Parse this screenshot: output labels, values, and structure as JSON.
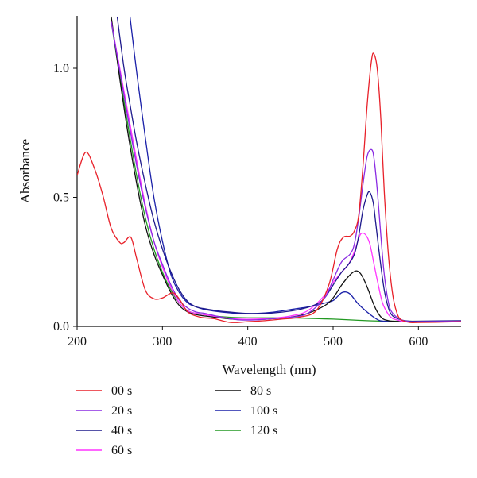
{
  "chart_data": {
    "type": "line",
    "xlabel": "Wavelength (nm)",
    "ylabel": "Absorbance",
    "xlim": [
      200,
      650
    ],
    "ylim": [
      0,
      1.2
    ],
    "x_ticks": [
      200,
      300,
      400,
      500,
      600
    ],
    "x_tick_labels": [
      "200",
      "300",
      "400",
      "500",
      "600"
    ],
    "y_ticks": [
      0,
      0.5,
      1.0
    ],
    "y_tick_labels": [
      "0.0",
      "0.5",
      "1.0"
    ],
    "grid": false,
    "legend_position": "bottom",
    "series": [
      {
        "name": "00 s",
        "color": "#e8212a",
        "x": [
          200,
          210,
          220,
          230,
          240,
          250,
          255,
          263,
          270,
          280,
          290,
          300,
          312,
          320,
          330,
          345,
          360,
          380,
          400,
          420,
          440,
          460,
          480,
          495,
          505,
          512,
          520,
          525,
          530,
          535,
          540,
          545,
          548,
          552,
          556,
          560,
          565,
          570,
          575,
          580,
          590,
          600,
          620,
          650
        ],
        "y": [
          0.585,
          0.675,
          0.615,
          0.51,
          0.38,
          0.325,
          0.325,
          0.345,
          0.26,
          0.14,
          0.107,
          0.11,
          0.13,
          0.105,
          0.055,
          0.035,
          0.03,
          0.015,
          0.018,
          0.022,
          0.028,
          0.035,
          0.06,
          0.16,
          0.3,
          0.345,
          0.35,
          0.37,
          0.43,
          0.62,
          0.86,
          1.03,
          1.055,
          0.99,
          0.8,
          0.52,
          0.27,
          0.12,
          0.05,
          0.025,
          0.015,
          0.015,
          0.016,
          0.018
        ]
      },
      {
        "name": "20 s",
        "color": "#8a2be2",
        "x": [
          240,
          250,
          260,
          270,
          280,
          290,
          300,
          310,
          320,
          330,
          340,
          350,
          370,
          390,
          410,
          430,
          450,
          470,
          490,
          500,
          510,
          520,
          525,
          530,
          535,
          540,
          545,
          548,
          552,
          556,
          560,
          565,
          570,
          580,
          590,
          600,
          650
        ],
        "y": [
          1.18,
          0.99,
          0.8,
          0.62,
          0.46,
          0.33,
          0.24,
          0.16,
          0.1,
          0.07,
          0.055,
          0.05,
          0.035,
          0.025,
          0.025,
          0.03,
          0.035,
          0.05,
          0.11,
          0.18,
          0.25,
          0.28,
          0.32,
          0.42,
          0.55,
          0.66,
          0.685,
          0.65,
          0.52,
          0.35,
          0.2,
          0.09,
          0.05,
          0.025,
          0.018,
          0.018,
          0.02
        ]
      },
      {
        "name": "40 s",
        "color": "#1e1a8c",
        "x": [
          247,
          255,
          262,
          270,
          280,
          290,
          300,
          310,
          320,
          330,
          340,
          350,
          365,
          380,
          400,
          420,
          440,
          460,
          480,
          490,
          500,
          510,
          518,
          525,
          530,
          535,
          540,
          543,
          547,
          550,
          555,
          560,
          565,
          570,
          580,
          590,
          600,
          650
        ],
        "y": [
          1.2,
          1.0,
          0.86,
          0.71,
          0.55,
          0.41,
          0.3,
          0.21,
          0.14,
          0.095,
          0.075,
          0.068,
          0.06,
          0.055,
          0.05,
          0.05,
          0.055,
          0.065,
          0.085,
          0.11,
          0.16,
          0.21,
          0.24,
          0.28,
          0.35,
          0.45,
          0.51,
          0.52,
          0.48,
          0.4,
          0.26,
          0.14,
          0.07,
          0.04,
          0.025,
          0.02,
          0.02,
          0.022
        ]
      },
      {
        "name": "60 s",
        "color": "#ff33ff",
        "x": [
          240,
          250,
          260,
          270,
          280,
          290,
          300,
          310,
          320,
          330,
          340,
          350,
          370,
          390,
          410,
          430,
          450,
          470,
          490,
          500,
          510,
          518,
          525,
          530,
          533,
          538,
          543,
          548,
          553,
          558,
          565,
          570,
          575,
          580,
          590,
          600,
          650
        ],
        "y": [
          1.18,
          1.0,
          0.82,
          0.64,
          0.47,
          0.33,
          0.23,
          0.15,
          0.09,
          0.06,
          0.05,
          0.045,
          0.035,
          0.028,
          0.028,
          0.032,
          0.04,
          0.06,
          0.12,
          0.17,
          0.21,
          0.24,
          0.29,
          0.34,
          0.36,
          0.355,
          0.32,
          0.24,
          0.16,
          0.09,
          0.045,
          0.03,
          0.025,
          0.02,
          0.018,
          0.018,
          0.02
        ]
      },
      {
        "name": "80 s",
        "color": "#111111",
        "x": [
          240,
          250,
          260,
          270,
          280,
          290,
          300,
          310,
          320,
          330,
          340,
          350,
          370,
          390,
          410,
          430,
          450,
          470,
          490,
          500,
          510,
          520,
          527,
          532,
          537,
          542,
          547,
          552,
          558,
          565,
          570,
          580,
          590,
          600,
          650
        ],
        "y": [
          1.2,
          0.96,
          0.74,
          0.55,
          0.39,
          0.28,
          0.2,
          0.13,
          0.08,
          0.055,
          0.045,
          0.04,
          0.032,
          0.026,
          0.026,
          0.03,
          0.035,
          0.05,
          0.08,
          0.11,
          0.16,
          0.2,
          0.215,
          0.205,
          0.175,
          0.135,
          0.09,
          0.055,
          0.03,
          0.022,
          0.02,
          0.018,
          0.018,
          0.018,
          0.02
        ]
      },
      {
        "name": "100 s",
        "color": "#1a20a8",
        "x": [
          262,
          270,
          280,
          290,
          300,
          310,
          320,
          330,
          340,
          350,
          370,
          390,
          410,
          430,
          450,
          470,
          490,
          500,
          505,
          510,
          515,
          520,
          525,
          530,
          540,
          550,
          555,
          560,
          570,
          580,
          600,
          650
        ],
        "y": [
          1.2,
          0.98,
          0.73,
          0.5,
          0.33,
          0.2,
          0.13,
          0.09,
          0.075,
          0.065,
          0.055,
          0.05,
          0.05,
          0.055,
          0.065,
          0.075,
          0.09,
          0.1,
          0.115,
          0.13,
          0.133,
          0.125,
          0.105,
          0.085,
          0.055,
          0.03,
          0.022,
          0.02,
          0.018,
          0.018,
          0.019,
          0.02
        ]
      },
      {
        "name": "120 s",
        "color": "#229922",
        "x": [
          240,
          250,
          260,
          270,
          280,
          290,
          300,
          310,
          320,
          330,
          340,
          350,
          360,
          380,
          400,
          420,
          440,
          460,
          480,
          500,
          520,
          540,
          560,
          580,
          600,
          650
        ],
        "y": [
          1.18,
          0.97,
          0.77,
          0.58,
          0.42,
          0.3,
          0.21,
          0.14,
          0.09,
          0.06,
          0.05,
          0.045,
          0.04,
          0.035,
          0.033,
          0.033,
          0.033,
          0.032,
          0.03,
          0.028,
          0.025,
          0.022,
          0.02,
          0.02,
          0.02,
          0.02
        ]
      }
    ]
  }
}
